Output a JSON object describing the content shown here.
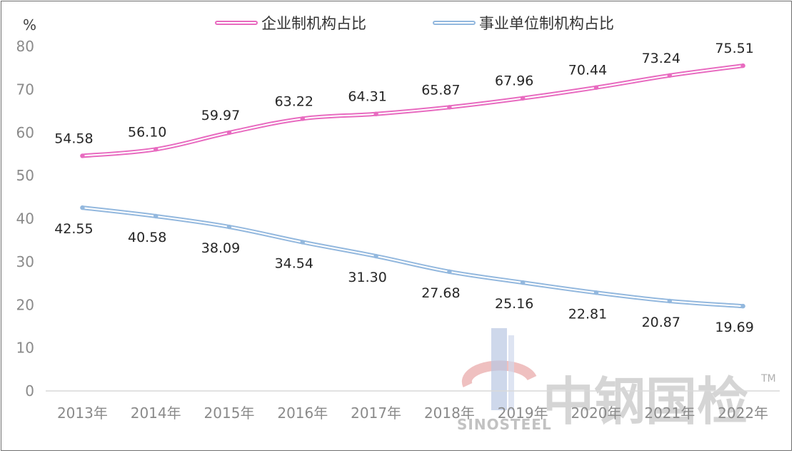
{
  "chart_data": {
    "type": "line",
    "unit_label": "%",
    "categories": [
      "2013年",
      "2014年",
      "2015年",
      "2016年",
      "2017年",
      "2018年",
      "2019年",
      "2020年",
      "2021年",
      "2022年"
    ],
    "ylim": [
      0,
      80
    ],
    "yticks": [
      0,
      10,
      20,
      30,
      40,
      50,
      60,
      70,
      80
    ],
    "grid": false,
    "legend_position": "top-center",
    "series": [
      {
        "name": "企业制机构占比",
        "color": "#e86bc0",
        "values": [
          54.58,
          56.1,
          59.97,
          63.22,
          64.31,
          65.87,
          67.96,
          70.44,
          73.24,
          75.51
        ],
        "labels": [
          "54.58",
          "56.10",
          "59.97",
          "63.22",
          "64.31",
          "65.87",
          "67.96",
          "70.44",
          "73.24",
          "75.51"
        ]
      },
      {
        "name": "事业单位制机构占比",
        "color": "#93b8de",
        "values": [
          42.55,
          40.58,
          38.09,
          34.54,
          31.3,
          27.68,
          25.16,
          22.81,
          20.87,
          19.69
        ],
        "labels": [
          "42.55",
          "40.58",
          "38.09",
          "34.54",
          "31.30",
          "27.68",
          "25.16",
          "22.81",
          "20.87",
          "19.69"
        ]
      }
    ]
  },
  "watermark": {
    "text_cn": "中钢国检",
    "text_en": "SINOSTEEL",
    "tm": "TM"
  }
}
